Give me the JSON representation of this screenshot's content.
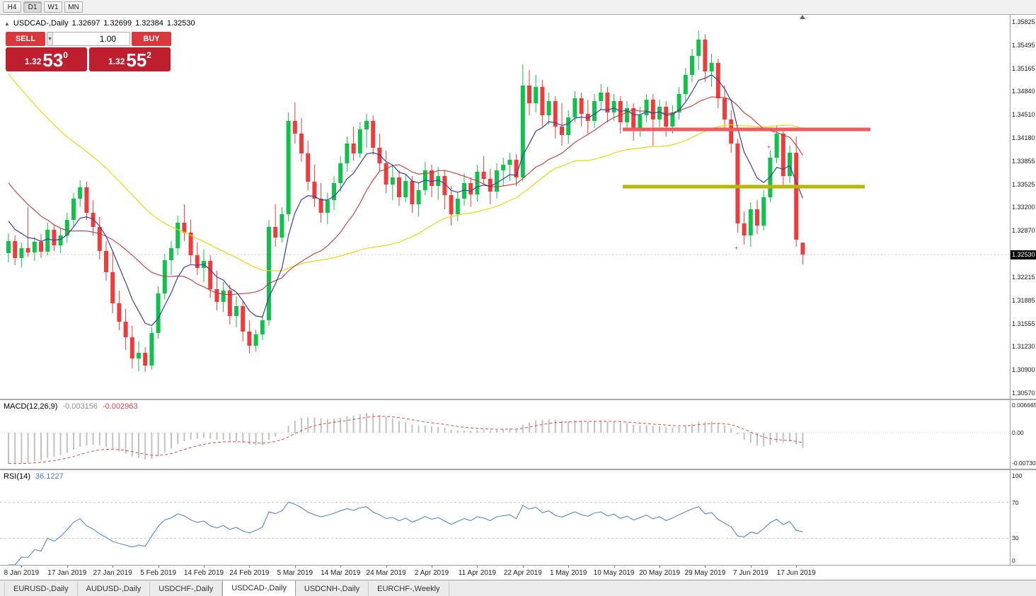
{
  "colors": {
    "bull": "#0fc24c",
    "bear": "#ee3b3b",
    "ma_fast": "#3a3f9e",
    "ma_mid": "#c23a3a",
    "ma_slow": "#e8d80c",
    "resistance": "#f15b5b",
    "support_zone": "#b5b800",
    "rsi_line": "#4a7ebb",
    "macd_signal": "#d94848",
    "macd_histogram": "#c2c2c2",
    "price_tag_bg": "#000000",
    "trade_panel_red": "#bf1e2e"
  },
  "toolbar": {
    "timeframes": [
      "H4",
      "D1",
      "W1",
      "MN"
    ],
    "active": "D1"
  },
  "chart_info": {
    "collapse_icon": "▲",
    "symbol": "USDCAD-,Daily",
    "open": "1.32697",
    "high": "1.32699",
    "low": "1.32384",
    "close": "1.32530"
  },
  "trade_panel": {
    "sell_label": "SELL",
    "buy_label": "BUY",
    "volume": "1.00",
    "spin_down": "▼",
    "spin_up": "▲",
    "sell_price": {
      "prefix": "1.32",
      "big": "53",
      "sup": "0"
    },
    "buy_price": {
      "prefix": "1.32",
      "big": "55",
      "sup": "2"
    }
  },
  "chart_data": {
    "type": "candlestick",
    "symbol": "USDCAD-",
    "timeframe": "Daily",
    "current_price": "1.32530",
    "y_axis_labels": [
      "1.35825",
      "1.35495",
      "1.35165",
      "1.34840",
      "1.34510",
      "1.34180",
      "1.33855",
      "1.33525",
      "1.33200",
      "1.32870",
      "1.32215",
      "1.31885",
      "1.31555",
      "1.31230",
      "1.30900",
      "1.30570"
    ],
    "x_labels": [
      "8 Jan 2019",
      "17 Jan 2019",
      "27 Jan 2019",
      "5 Feb 2019",
      "14 Feb 2019",
      "24 Feb 2019",
      "5 Mar 2019",
      "14 Mar 2019",
      "24 Mar 2019",
      "2 Apr 2019",
      "11 Apr 2019",
      "22 Apr 2019",
      "1 May 2019",
      "10 May 2019",
      "20 May 2019",
      "29 May 2019",
      "7 Jun 2019",
      "17 Jun 2019"
    ],
    "x_label_start_index": 2,
    "x_label_step": 7,
    "levels": [
      {
        "name": "resistance-line",
        "price": 1.343,
        "color": "#f15b5b"
      },
      {
        "name": "support-line",
        "price": 1.3349,
        "color": "#b5b800"
      }
    ],
    "indicators": {
      "macd": {
        "label": "MACD(12,26,9)",
        "value_main": "-0.003156",
        "value_signal": "-0.002963",
        "axis_labels": [
          "0.006665",
          "0.00",
          "-0.007308"
        ]
      },
      "rsi": {
        "label": "RSI(14)",
        "value": "36.1227",
        "axis_labels": [
          "100",
          "70",
          "30",
          "0"
        ],
        "levels": [
          70,
          30
        ]
      }
    },
    "ohlc": [
      [
        1.3255,
        1.3283,
        1.3242,
        1.3272
      ],
      [
        1.3272,
        1.328,
        1.3238,
        1.3248
      ],
      [
        1.3248,
        1.327,
        1.3235,
        1.3262
      ],
      [
        1.3262,
        1.332,
        1.325,
        1.3256
      ],
      [
        1.3256,
        1.3278,
        1.3244,
        1.3271
      ],
      [
        1.3271,
        1.3282,
        1.3248,
        1.3257
      ],
      [
        1.3257,
        1.3298,
        1.3252,
        1.3288
      ],
      [
        1.3288,
        1.3295,
        1.3258,
        1.3266
      ],
      [
        1.3266,
        1.329,
        1.3255,
        1.328
      ],
      [
        1.328,
        1.3312,
        1.327,
        1.3302
      ],
      [
        1.3302,
        1.334,
        1.3292,
        1.3332
      ],
      [
        1.3332,
        1.3358,
        1.332,
        1.3348
      ],
      [
        1.3348,
        1.3356,
        1.3302,
        1.3312
      ],
      [
        1.3312,
        1.333,
        1.328,
        1.3292
      ],
      [
        1.3292,
        1.3306,
        1.3246,
        1.3258
      ],
      [
        1.3258,
        1.3272,
        1.3216,
        1.3228
      ],
      [
        1.3228,
        1.3256,
        1.317,
        1.3184
      ],
      [
        1.3184,
        1.3202,
        1.3146,
        1.3158
      ],
      [
        1.3158,
        1.3176,
        1.3118,
        1.3136
      ],
      [
        1.3136,
        1.3152,
        1.3092,
        1.3106
      ],
      [
        1.3106,
        1.313,
        1.3088,
        1.3114
      ],
      [
        1.3114,
        1.3122,
        1.3087,
        1.3096
      ],
      [
        1.3096,
        1.315,
        1.309,
        1.3142
      ],
      [
        1.3142,
        1.3208,
        1.3134,
        1.3198
      ],
      [
        1.3198,
        1.3254,
        1.319,
        1.3245
      ],
      [
        1.3245,
        1.3272,
        1.3224,
        1.3262
      ],
      [
        1.3262,
        1.3308,
        1.3252,
        1.3298
      ],
      [
        1.3298,
        1.3324,
        1.3272,
        1.3284
      ],
      [
        1.3284,
        1.3302,
        1.324,
        1.3252
      ],
      [
        1.3252,
        1.327,
        1.3224,
        1.3234
      ],
      [
        1.3234,
        1.326,
        1.3214,
        1.3244
      ],
      [
        1.3244,
        1.3252,
        1.3192,
        1.3204
      ],
      [
        1.3204,
        1.323,
        1.3174,
        1.3186
      ],
      [
        1.3186,
        1.3214,
        1.3172,
        1.3202
      ],
      [
        1.3202,
        1.321,
        1.3154,
        1.3166
      ],
      [
        1.3166,
        1.3194,
        1.315,
        1.318
      ],
      [
        1.318,
        1.3187,
        1.313,
        1.3144
      ],
      [
        1.3144,
        1.316,
        1.3113,
        1.3124
      ],
      [
        1.3124,
        1.3147,
        1.3116,
        1.314
      ],
      [
        1.314,
        1.3167,
        1.3132,
        1.316
      ],
      [
        1.316,
        1.3302,
        1.3152,
        1.3292
      ],
      [
        1.3292,
        1.3324,
        1.3264,
        1.3277
      ],
      [
        1.3277,
        1.332,
        1.327,
        1.331
      ],
      [
        1.331,
        1.3454,
        1.33,
        1.3442
      ],
      [
        1.3442,
        1.3468,
        1.341,
        1.3424
      ],
      [
        1.3424,
        1.3446,
        1.3384,
        1.3396
      ],
      [
        1.3396,
        1.3414,
        1.3344,
        1.3356
      ],
      [
        1.3356,
        1.338,
        1.332,
        1.3332
      ],
      [
        1.3332,
        1.3354,
        1.3298,
        1.3312
      ],
      [
        1.3312,
        1.334,
        1.3296,
        1.333
      ],
      [
        1.333,
        1.3364,
        1.3316,
        1.3354
      ],
      [
        1.3354,
        1.3392,
        1.3342,
        1.3382
      ],
      [
        1.3382,
        1.342,
        1.337,
        1.341
      ],
      [
        1.341,
        1.3434,
        1.3386,
        1.3396
      ],
      [
        1.3396,
        1.344,
        1.339,
        1.343
      ],
      [
        1.343,
        1.3452,
        1.3404,
        1.3442
      ],
      [
        1.3442,
        1.345,
        1.3394,
        1.3404
      ],
      [
        1.3404,
        1.3424,
        1.337,
        1.3382
      ],
      [
        1.3382,
        1.34,
        1.334,
        1.3352
      ],
      [
        1.3352,
        1.3378,
        1.333,
        1.3362
      ],
      [
        1.3362,
        1.3372,
        1.3322,
        1.3334
      ],
      [
        1.3334,
        1.3367,
        1.3327,
        1.3357
      ],
      [
        1.3357,
        1.3364,
        1.3312,
        1.3324
      ],
      [
        1.3324,
        1.3354,
        1.3307,
        1.3344
      ],
      [
        1.3344,
        1.3384,
        1.3337,
        1.3372
      ],
      [
        1.3372,
        1.338,
        1.3334,
        1.335
      ],
      [
        1.335,
        1.3377,
        1.333,
        1.3364
      ],
      [
        1.3364,
        1.3372,
        1.3317,
        1.3337
      ],
      [
        1.3337,
        1.335,
        1.3294,
        1.331
      ],
      [
        1.331,
        1.3342,
        1.33,
        1.3332
      ],
      [
        1.3332,
        1.3368,
        1.3322,
        1.3354
      ],
      [
        1.3354,
        1.3362,
        1.332,
        1.3338
      ],
      [
        1.3338,
        1.338,
        1.3328,
        1.337
      ],
      [
        1.337,
        1.3392,
        1.3352,
        1.336
      ],
      [
        1.336,
        1.3374,
        1.3324,
        1.3342
      ],
      [
        1.3342,
        1.3382,
        1.3332,
        1.3372
      ],
      [
        1.3372,
        1.339,
        1.335,
        1.338
      ],
      [
        1.338,
        1.3397,
        1.3357,
        1.3387
      ],
      [
        1.3387,
        1.3395,
        1.335,
        1.3362
      ],
      [
        1.3362,
        1.3522,
        1.3356,
        1.3492
      ],
      [
        1.3492,
        1.3514,
        1.345,
        1.3467
      ],
      [
        1.3467,
        1.3507,
        1.3454,
        1.349
      ],
      [
        1.349,
        1.35,
        1.3434,
        1.345
      ],
      [
        1.345,
        1.3482,
        1.3437,
        1.347
      ],
      [
        1.347,
        1.3477,
        1.3417,
        1.3434
      ],
      [
        1.3434,
        1.3467,
        1.3407,
        1.3422
      ],
      [
        1.3422,
        1.3457,
        1.341,
        1.3447
      ],
      [
        1.3447,
        1.3484,
        1.344,
        1.3474
      ],
      [
        1.3474,
        1.3482,
        1.3434,
        1.3452
      ],
      [
        1.3452,
        1.3472,
        1.3424,
        1.3442
      ],
      [
        1.3442,
        1.348,
        1.3432,
        1.347
      ],
      [
        1.347,
        1.3494,
        1.3457,
        1.3482
      ],
      [
        1.3482,
        1.349,
        1.344,
        1.3454
      ],
      [
        1.3454,
        1.348,
        1.3442,
        1.347
      ],
      [
        1.347,
        1.3477,
        1.3424,
        1.344
      ],
      [
        1.344,
        1.347,
        1.343,
        1.346
      ],
      [
        1.346,
        1.3467,
        1.3414,
        1.343
      ],
      [
        1.343,
        1.3462,
        1.342,
        1.345
      ],
      [
        1.345,
        1.348,
        1.344,
        1.3472
      ],
      [
        1.3472,
        1.348,
        1.3407,
        1.3444
      ],
      [
        1.3444,
        1.3472,
        1.3432,
        1.3462
      ],
      [
        1.3462,
        1.347,
        1.342,
        1.3434
      ],
      [
        1.3434,
        1.3464,
        1.3424,
        1.3454
      ],
      [
        1.3454,
        1.349,
        1.3444,
        1.348
      ],
      [
        1.348,
        1.3517,
        1.347,
        1.3507
      ],
      [
        1.3507,
        1.3544,
        1.3497,
        1.3534
      ],
      [
        1.3534,
        1.357,
        1.3514,
        1.3557
      ],
      [
        1.3557,
        1.3564,
        1.3497,
        1.3512
      ],
      [
        1.3512,
        1.3537,
        1.349,
        1.3524
      ],
      [
        1.3524,
        1.353,
        1.346,
        1.3474
      ],
      [
        1.3474,
        1.3492,
        1.343,
        1.3444
      ],
      [
        1.3444,
        1.3457,
        1.3397,
        1.341
      ],
      [
        1.341,
        1.3417,
        1.3284,
        1.3297
      ],
      [
        1.3297,
        1.3314,
        1.3267,
        1.328
      ],
      [
        1.328,
        1.3327,
        1.3264,
        1.3317
      ],
      [
        1.3317,
        1.333,
        1.3282,
        1.3294
      ],
      [
        1.3294,
        1.3344,
        1.3287,
        1.3334
      ],
      [
        1.3334,
        1.34,
        1.3327,
        1.339
      ],
      [
        1.339,
        1.3436,
        1.3382,
        1.3424
      ],
      [
        1.3424,
        1.3431,
        1.3347,
        1.3364
      ],
      [
        1.3364,
        1.3407,
        1.3354,
        1.3397
      ],
      [
        1.3397,
        1.342,
        1.3264,
        1.3274
      ],
      [
        1.32697,
        1.32699,
        1.32384,
        1.3253
      ]
    ]
  },
  "bottom_tabs": {
    "items": [
      "EURUSD-,Daily",
      "AUDUSD-,Daily",
      "USDCHF-,Daily",
      "USDCAD-,Daily",
      "USDCNH-,Daily",
      "EURCHF-,Weekly"
    ],
    "active_index": 3
  }
}
